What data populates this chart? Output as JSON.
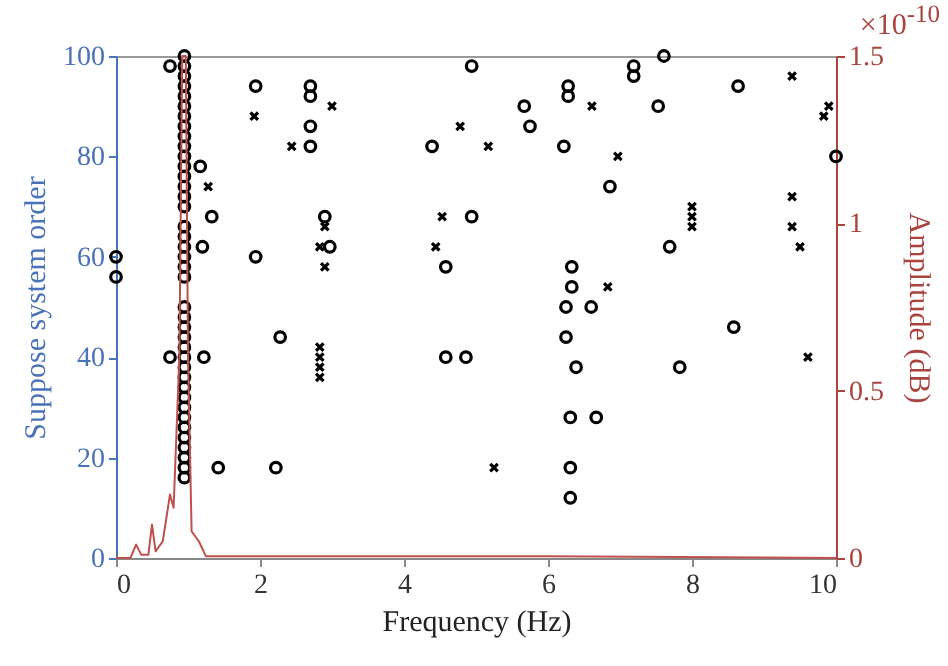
{
  "chart_data": {
    "type": "scatter",
    "xlabel": "Frequency (Hz)",
    "ylabel": "Suppose system order",
    "y2label": "Amplitude (dB)",
    "xlim": [
      0,
      10
    ],
    "xticks": [
      0,
      2,
      4,
      6,
      8,
      10
    ],
    "ylim": [
      0,
      100
    ],
    "yticks": [
      0,
      20,
      40,
      60,
      80,
      100
    ],
    "y2lim": [
      0,
      1.5
    ],
    "y2ticks": [
      0,
      0.5,
      1,
      1.5
    ],
    "grid": false,
    "legend": false,
    "annotations": [
      "×10$^{-10}$"
    ],
    "series": [
      {
        "marker": "circle",
        "color": "#000000",
        "x": [
          0,
          0,
          0.75,
          0.95,
          0.95,
          0.95,
          0.95,
          0.95,
          0.95,
          0.95,
          0.95,
          0.95,
          0.95,
          0.95,
          0.95,
          0.95,
          0.95,
          0.95,
          0.95,
          0.95,
          0.95,
          0.95,
          0.95,
          0.95,
          0.95,
          0.95,
          0.95,
          0.95,
          0.95,
          0.95,
          0.95,
          0.95,
          0.95,
          0.95,
          0.95,
          0.95,
          0.95,
          0.95,
          0.95,
          0.95,
          0.95,
          0.95,
          0.95,
          1.17,
          1.33,
          1.2,
          1.94,
          1.94,
          2.7,
          2.7,
          2.7,
          2.7,
          2.9,
          2.97,
          4.94,
          4.39,
          4.58,
          4.94,
          5.67,
          5.75,
          6.28,
          6.28,
          6.22,
          7.19,
          7.19,
          7.61,
          7.53,
          6.86,
          8.64,
          10,
          7.69,
          6.33,
          6.33,
          6.25,
          6.6,
          0.75,
          1.22,
          2.28,
          2.22,
          1.42,
          4.58,
          4.86,
          6.25,
          6.39,
          7.83,
          8.58,
          6.31,
          6.67,
          6.31,
          6.31
        ],
        "values": [
          60,
          56,
          98,
          100,
          98,
          96,
          94,
          92,
          90,
          88,
          86,
          84,
          82,
          80,
          78,
          76,
          74,
          72,
          70,
          66,
          64,
          62,
          60,
          58,
          56,
          50,
          48,
          46,
          44,
          42,
          40,
          38,
          36,
          34,
          32,
          30,
          28,
          26,
          24,
          22,
          20,
          18,
          16,
          78,
          68,
          62,
          94,
          60,
          94,
          92,
          86,
          82,
          68,
          62,
          98,
          82,
          58,
          68,
          90,
          86,
          94,
          92,
          82,
          96,
          98,
          100,
          90,
          74,
          94,
          80,
          62,
          58,
          54,
          50,
          50,
          40,
          40,
          44,
          18,
          18,
          40,
          40,
          44,
          38,
          38,
          46,
          28,
          28,
          18,
          12
        ]
      },
      {
        "marker": "cross",
        "color": "#000000",
        "x": [
          1.92,
          3.0,
          2.44,
          1.28,
          2.9,
          2.83,
          2.9,
          4.53,
          4.44,
          4.78,
          6.61,
          5.17,
          6.97,
          8.0,
          8.0,
          8.0,
          9.39,
          9.83,
          9.9,
          9.39,
          9.39,
          9.5,
          6.83,
          2.83,
          2.83,
          2.83,
          2.83,
          5.25,
          9.61
        ],
        "values": [
          88,
          90,
          82,
          74,
          66,
          62,
          58,
          68,
          62,
          86,
          90,
          82,
          80,
          70,
          68,
          66,
          96,
          88,
          90,
          72,
          66,
          62,
          54,
          42,
          40,
          38,
          36,
          18,
          40
        ]
      },
      {
        "type": "line",
        "axis": "y2",
        "marker": "none",
        "color": "#c0504d",
        "x": [
          0,
          0.2,
          0.28,
          0.35,
          0.45,
          0.5,
          0.55,
          0.65,
          0.75,
          0.8,
          0.88,
          0.92,
          0.97,
          1.0,
          1.05,
          1.15,
          1.25,
          2,
          6,
          10
        ],
        "values": [
          0,
          0,
          0.04,
          0.01,
          0.01,
          0.1,
          0.02,
          0.05,
          0.19,
          0.15,
          0.6,
          1.5,
          1.5,
          0.6,
          0.08,
          0.05,
          0.005,
          0.005,
          0.005,
          0
        ]
      }
    ]
  }
}
